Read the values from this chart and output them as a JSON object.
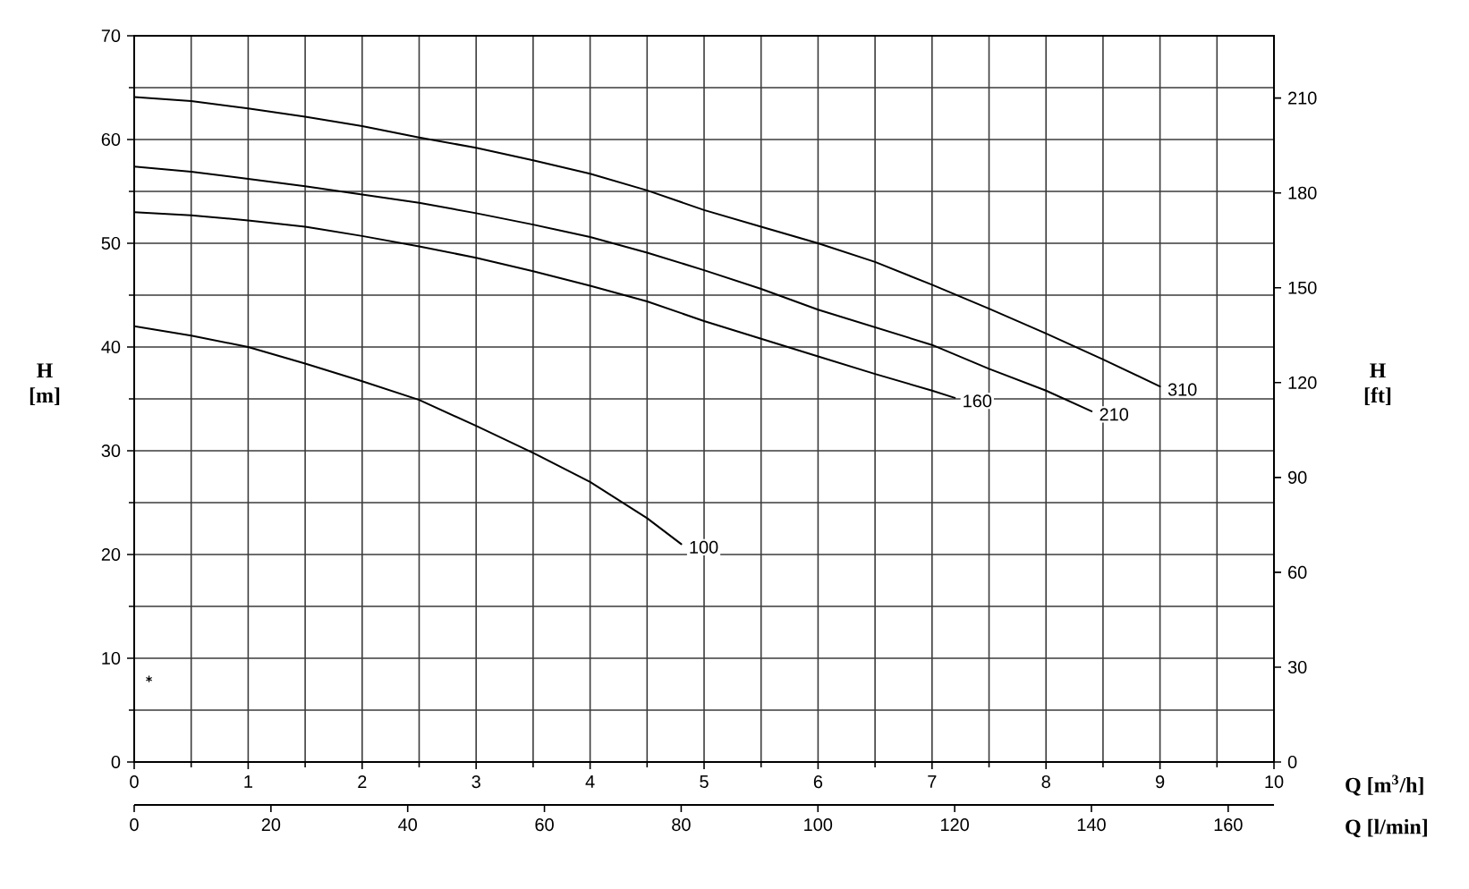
{
  "chart_data": {
    "type": "line",
    "xlabel": "Q [m$^{3}$/h]",
    "ylabel": "H [m]",
    "y2label": "H [ft]",
    "x2label": "Q [l/min]",
    "xlim": [
      0,
      10
    ],
    "xticks": [
      0,
      1,
      2,
      3,
      4,
      5,
      6,
      7,
      8,
      9,
      10
    ],
    "ylim": [
      0,
      70
    ],
    "yticks": [
      0,
      10,
      20,
      30,
      40,
      50,
      60,
      70
    ],
    "y2lim": [
      0,
      229.7
    ],
    "y2ticks": [
      0,
      30,
      60,
      90,
      120,
      150,
      180,
      210
    ],
    "x2lim": [
      0,
      166.7
    ],
    "x2ticks": [
      0,
      20,
      40,
      60,
      80,
      100,
      120,
      140,
      160
    ],
    "grid": true,
    "series": [
      {
        "name": "100",
        "color": "#000000",
        "x": [
          0,
          0.5,
          1,
          1.5,
          2,
          2.5,
          3,
          3.5,
          4,
          4.5,
          4.8
        ],
        "values": [
          42.0,
          41.1,
          40.0,
          38.4,
          36.7,
          34.9,
          32.4,
          29.8,
          27.0,
          23.5,
          21.0
        ]
      },
      {
        "name": "160",
        "color": "#000000",
        "x": [
          0,
          0.5,
          1,
          1.5,
          2,
          2.5,
          3,
          3.5,
          4,
          4.5,
          5,
          5.5,
          6,
          6.5,
          7,
          7.2
        ],
        "values": [
          53.0,
          52.7,
          52.2,
          51.6,
          50.7,
          49.7,
          48.6,
          47.3,
          45.9,
          44.4,
          42.5,
          40.8,
          39.1,
          37.4,
          35.8,
          35.1
        ]
      },
      {
        "name": "210",
        "color": "#000000",
        "x": [
          0,
          0.5,
          1,
          1.5,
          2,
          2.5,
          3,
          3.5,
          4,
          4.5,
          5,
          5.5,
          6,
          6.5,
          7,
          7.5,
          8,
          8.4
        ],
        "values": [
          57.4,
          56.9,
          56.2,
          55.5,
          54.7,
          53.9,
          52.9,
          51.8,
          50.6,
          49.1,
          47.4,
          45.6,
          43.6,
          41.9,
          40.2,
          37.9,
          35.8,
          33.8
        ]
      },
      {
        "name": "310",
        "color": "#000000",
        "x": [
          0,
          0.5,
          1,
          1.5,
          2,
          2.5,
          3,
          3.5,
          4,
          4.5,
          5,
          5.5,
          6,
          6.5,
          7,
          7.5,
          8,
          8.5,
          9
        ],
        "values": [
          64.1,
          63.7,
          63.0,
          62.2,
          61.3,
          60.2,
          59.2,
          58.0,
          56.7,
          55.1,
          53.2,
          51.6,
          50.0,
          48.2,
          46.0,
          43.7,
          41.3,
          38.8,
          36.2
        ]
      },
      {
        "type": "scatter",
        "color": "#000000",
        "marker": "cross",
        "x": [
          0.13
        ],
        "values": [
          8.0
        ]
      }
    ]
  }
}
